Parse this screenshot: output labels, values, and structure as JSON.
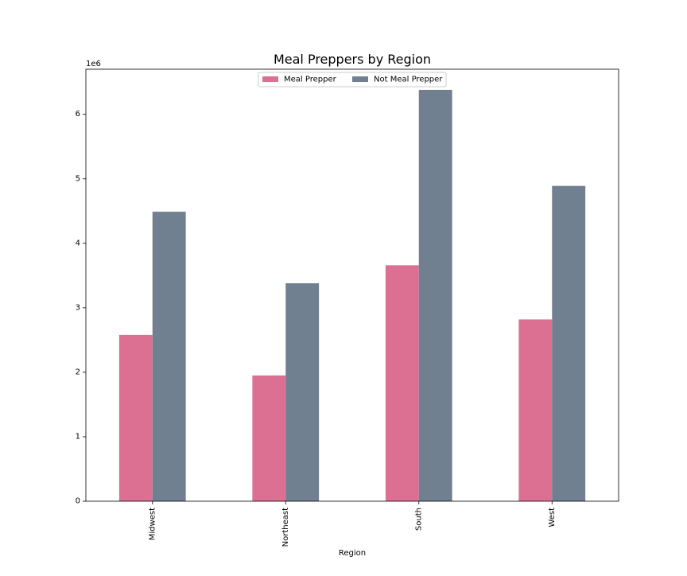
{
  "chart_data": {
    "type": "bar",
    "title": "Meal Preppers by Region",
    "xlabel": "Region",
    "ylabel": "",
    "y_offset_label": "1e6",
    "categories": [
      "Midwest",
      "Northeast",
      "South",
      "West"
    ],
    "series": [
      {
        "name": "Meal Prepper",
        "color": "#db7093",
        "values": [
          2580000,
          1950000,
          3660000,
          2820000
        ]
      },
      {
        "name": "Not Meal Prepper",
        "color": "#708090",
        "values": [
          4490000,
          3380000,
          6380000,
          4890000
        ]
      }
    ],
    "ylim": [
      0,
      6700000
    ],
    "yticks": [
      0,
      1000000,
      2000000,
      3000000,
      4000000,
      5000000,
      6000000
    ],
    "ytick_labels": [
      "0",
      "1",
      "2",
      "3",
      "4",
      "5",
      "6"
    ],
    "grid": false,
    "legend_position": "top-center"
  }
}
